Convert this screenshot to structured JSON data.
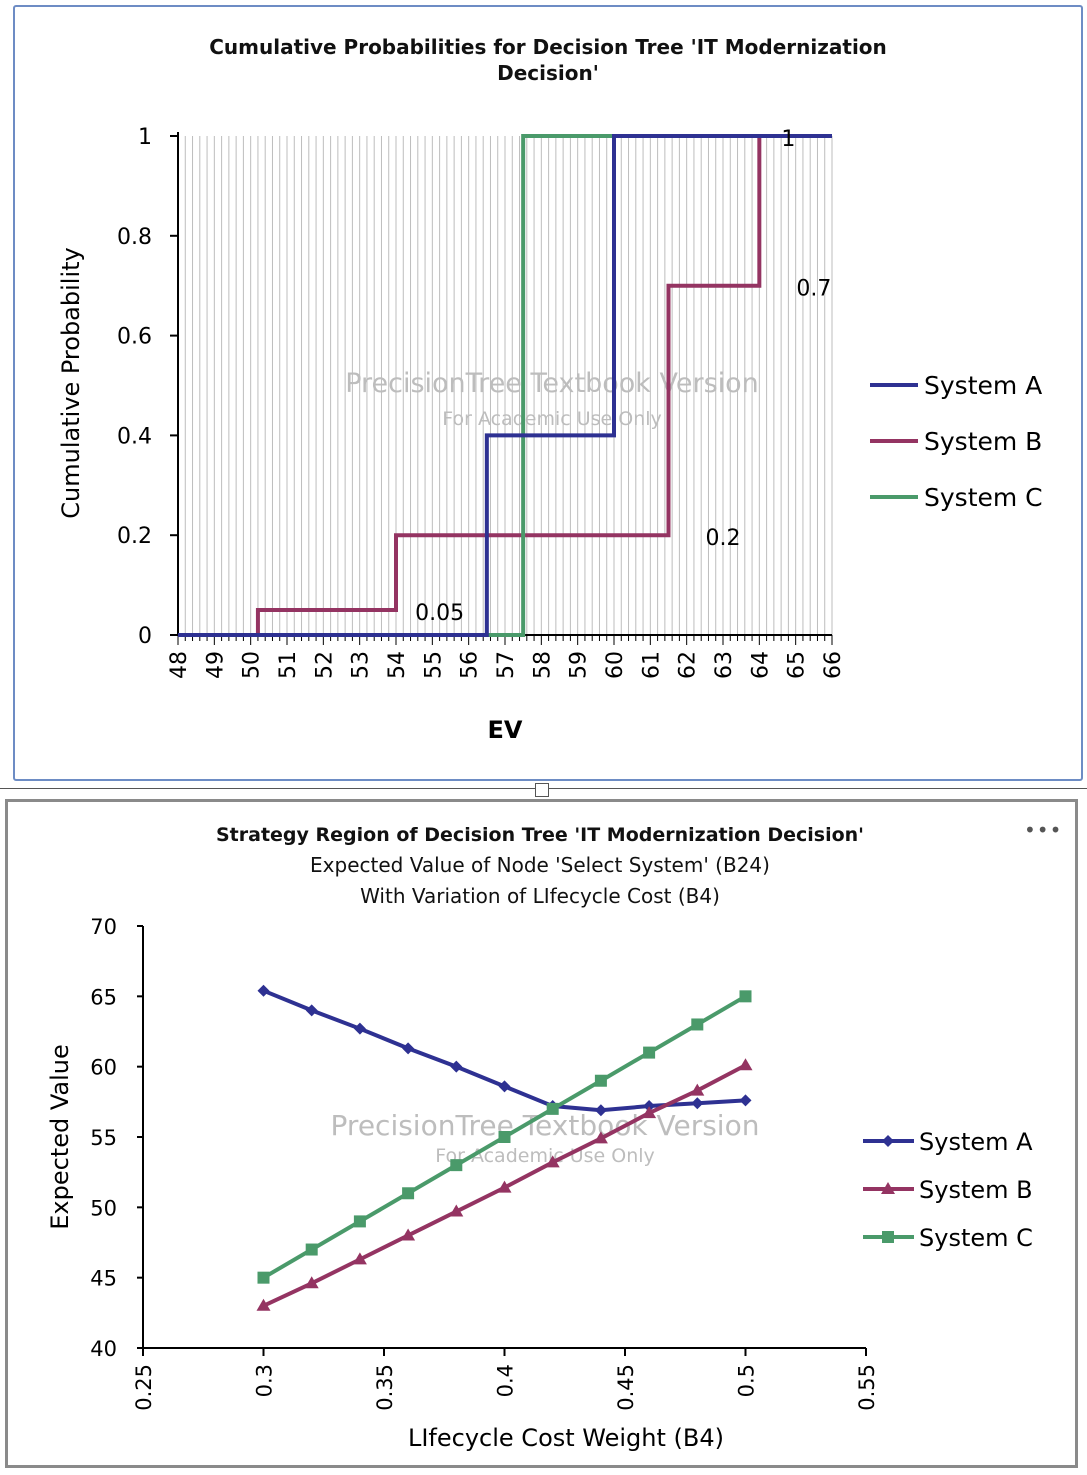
{
  "colors": {
    "System A": "#2e3192",
    "System B": "#943462",
    "System C": "#4a9a6a",
    "watermark": "#bdbdbd",
    "grid": "#bdbdbd"
  },
  "watermark": {
    "line1": "PrecisionTree Textbook Version",
    "line2": "For Academic Use Only"
  },
  "menu_icon": "more-horizontal-icon",
  "more_label": "•••",
  "chart_data": [
    {
      "type": "line",
      "subtype": "step",
      "title": "Cumulative Probabilities for Decision Tree 'IT Modernization Decision'",
      "title_lines": [
        "Cumulative Probabilities for Decision Tree 'IT Modernization",
        "Decision'"
      ],
      "xlabel": "EV",
      "ylabel": "Cumulative Probability",
      "xlim": [
        48,
        66
      ],
      "ylim": [
        0,
        1
      ],
      "xticks": [
        "48",
        "49",
        "50",
        "51",
        "52",
        "53",
        "54",
        "55",
        "56",
        "57",
        "58",
        "59",
        "60",
        "61",
        "62",
        "63",
        "64",
        "65",
        "66"
      ],
      "yticks": [
        "0",
        "0.2",
        "0.4",
        "0.6",
        "0.8",
        "1"
      ],
      "grid": "vertical minor",
      "legend": "right",
      "series": [
        {
          "name": "System A",
          "points": [
            [
              48,
              0
            ],
            [
              56.5,
              0
            ],
            [
              56.5,
              0.4
            ],
            [
              60,
              0.4
            ],
            [
              60,
              1
            ],
            [
              66,
              1
            ]
          ]
        },
        {
          "name": "System B",
          "points": [
            [
              48,
              0
            ],
            [
              50.2,
              0
            ],
            [
              50.2,
              0.05
            ],
            [
              54,
              0.05
            ],
            [
              54,
              0.2
            ],
            [
              61.5,
              0.2
            ],
            [
              61.5,
              0.7
            ],
            [
              64,
              0.7
            ],
            [
              64,
              1
            ],
            [
              66,
              1
            ]
          ]
        },
        {
          "name": "System C",
          "points": [
            [
              48,
              0
            ],
            [
              57.5,
              0
            ],
            [
              57.5,
              1
            ],
            [
              66,
              1
            ]
          ]
        }
      ],
      "annotations": [
        {
          "text": "0.05",
          "x": 55.2,
          "y": 0.05
        },
        {
          "text": "0.2",
          "x": 63,
          "y": 0.2
        },
        {
          "text": "0.7",
          "x": 65.5,
          "y": 0.7
        },
        {
          "text": "1",
          "x": 64.8,
          "y": 1
        }
      ]
    },
    {
      "type": "line",
      "title": "Strategy Region of Decision Tree 'IT Modernization Decision'",
      "subtitle": [
        "Expected Value of Node 'Select System' (B24)",
        "With Variation of LIfecycle Cost (B4)"
      ],
      "xlabel": "LIfecycle Cost Weight (B4)",
      "ylabel": "Expected Value",
      "xlim": [
        0.25,
        0.55
      ],
      "ylim": [
        40,
        70
      ],
      "xticks": [
        "0.25",
        "0.3",
        "0.35",
        "0.4",
        "0.45",
        "0.5",
        "0.55"
      ],
      "yticks": [
        "40",
        "45",
        "50",
        "55",
        "60",
        "65",
        "70"
      ],
      "grid": "none",
      "legend": "right",
      "x": [
        0.3,
        0.32,
        0.34,
        0.36,
        0.38,
        0.4,
        0.42,
        0.44,
        0.46,
        0.48,
        0.5
      ],
      "series": [
        {
          "name": "System A",
          "marker": "diamond",
          "values": [
            65.4,
            64.0,
            62.7,
            61.3,
            60.0,
            58.6,
            57.2,
            56.9,
            57.2,
            57.4,
            57.6
          ]
        },
        {
          "name": "System B",
          "marker": "triangle",
          "values": [
            43.0,
            44.6,
            46.3,
            48.0,
            49.7,
            51.4,
            53.2,
            54.9,
            56.7,
            58.3,
            60.1
          ]
        },
        {
          "name": "System C",
          "marker": "square",
          "values": [
            45,
            47,
            49,
            51,
            53,
            55,
            57,
            59,
            61,
            63,
            65
          ]
        }
      ]
    }
  ]
}
